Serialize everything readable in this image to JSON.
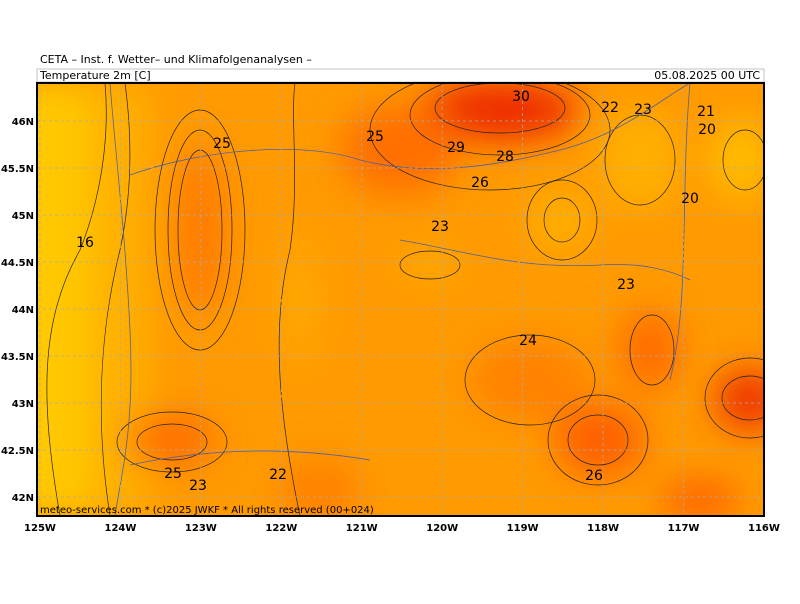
{
  "header": {
    "title": "CETA – Inst. f. Wetter– und Klimafolgenanalysen –",
    "variable": "Temperature 2m [C]",
    "datetime": "05.08.2025 00 UTC"
  },
  "longitude_labels": [
    "125W",
    "124W",
    "123W",
    "122W",
    "121W",
    "120W",
    "119W",
    "118W",
    "117W",
    "116W"
  ],
  "latitude_labels": [
    "46N",
    "45.5N",
    "45N",
    "44.5N",
    "44N",
    "43.5N",
    "43N",
    "42.5N",
    "42N"
  ],
  "contour_labels": [
    "16",
    "25",
    "25",
    "30",
    "29",
    "28",
    "26",
    "22",
    "23",
    "21",
    "20",
    "20",
    "23",
    "23",
    "24",
    "25",
    "23",
    "22",
    "26"
  ],
  "footer": "meteo-services.com * (c)2025 JWKF * All rights reserved (00+024)"
}
